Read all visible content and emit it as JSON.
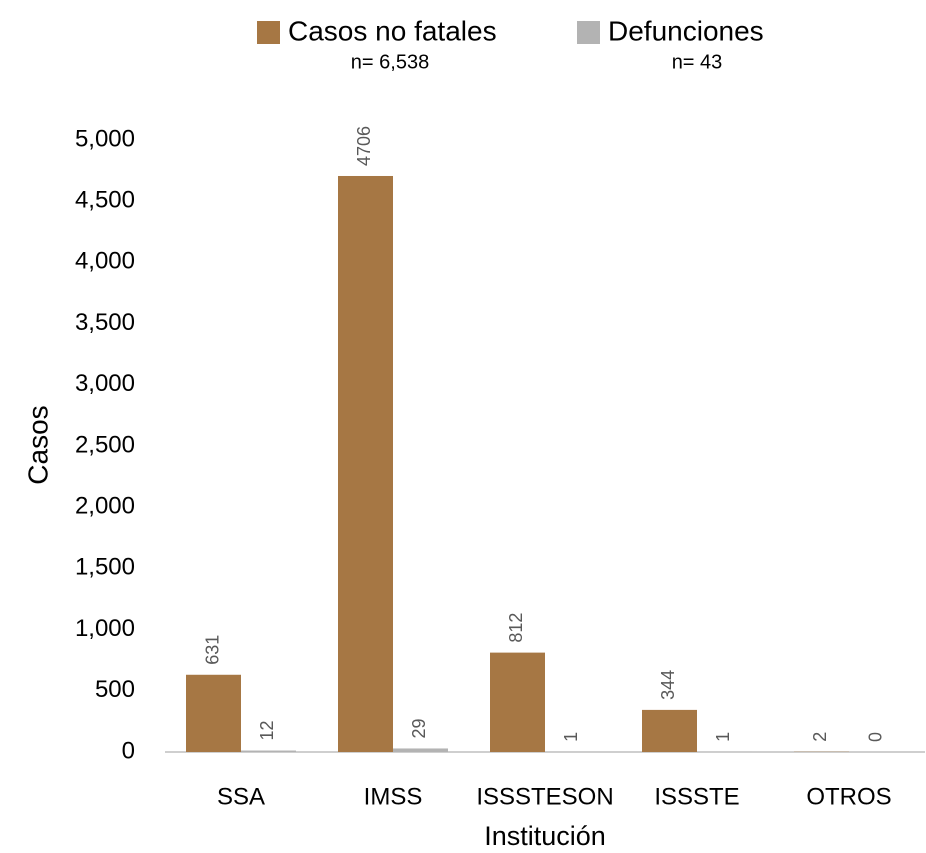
{
  "chart_data": {
    "type": "bar",
    "x_label": "Institución",
    "y_label": "Casos",
    "categories": [
      "SSA",
      "IMSS",
      "ISSSTESON",
      "ISSSTE",
      "OTROS"
    ],
    "series": [
      {
        "name": "Casos no fatales",
        "note": "n= 6,538",
        "color": "#a67744",
        "values": [
          631,
          4706,
          812,
          344,
          2
        ]
      },
      {
        "name": "Defunciones",
        "note": "n= 43",
        "color": "#b3b3b3",
        "values": [
          12,
          29,
          1,
          1,
          0
        ]
      }
    ],
    "ylim": [
      0,
      5000
    ],
    "yticks": [
      0,
      500,
      {
        "value": 1000,
        "label": "1,000"
      },
      {
        "value": 1500,
        "label": "1,500"
      },
      {
        "value": 2000,
        "label": "2,000"
      },
      {
        "value": 2500,
        "label": "2,500"
      },
      {
        "value": 3000,
        "label": "3,000"
      },
      {
        "value": 3500,
        "label": "3,500"
      },
      {
        "value": 4000,
        "label": "4,000"
      },
      {
        "value": 4500,
        "label": "4,500"
      },
      {
        "value": 5000,
        "label": "5,000"
      }
    ],
    "grid": false,
    "legend": "top"
  }
}
